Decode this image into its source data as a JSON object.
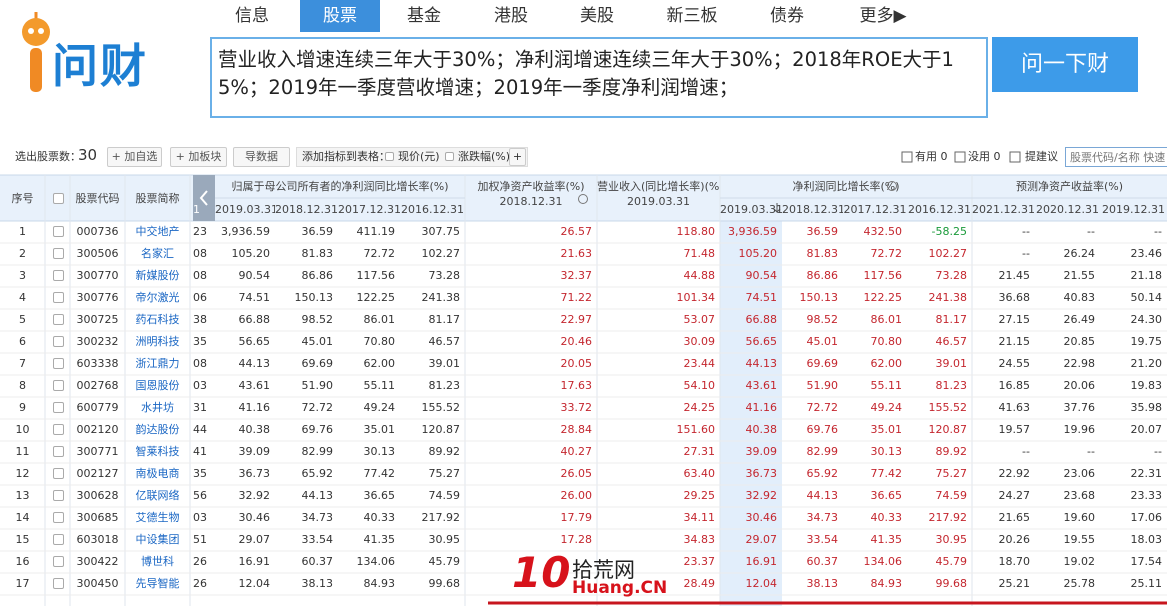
{
  "header": {
    "logo": "问财",
    "nav": [
      "信息",
      "股票",
      "基金",
      "港股",
      "美股",
      "新三板",
      "债券",
      "更多▶"
    ],
    "nav_active": 1
  },
  "search": {
    "query": "营业收入增速连续三年大于30%；净利润增速连续三年大于30%；2018年ROE大于15%；2019年一季度营收增速；2019年一季度净利润增速；",
    "button": "问一下财"
  },
  "toolbar": {
    "count_label": "选出股票数：",
    "count": "30",
    "buttons": [
      "+ 加自选",
      "+ 加板块",
      "导数据"
    ],
    "add_indicator_label": "添加指标到表格：",
    "indicators": [
      "现价(元)",
      "涨跌幅(%)"
    ],
    "add_more": "+",
    "useful": "有用 0",
    "useless": "没用 0",
    "suggest": "提建议",
    "search_placeholder": "股票代码/名称 快速"
  },
  "table": {
    "seq_header": "序号",
    "code_header": "股票代码",
    "name_header": "股票简称",
    "hidden_header": "1",
    "groups": [
      {
        "label": "归属于母公司所有者的净利润同比增长率(%)",
        "dates": [
          "2019.03.31",
          "2018.12.31",
          "2017.12.31",
          "2016.12.31"
        ]
      },
      {
        "label": "加权净资产收益率(%)",
        "dates": [
          "2018.12.31"
        ]
      },
      {
        "label": "营业收入(同比增长率)(%)",
        "dates": [
          "2019.03.31"
        ]
      },
      {
        "label": "净利润同比增长率(%)",
        "dates": [
          "2019.03.31",
          "2018.12.31",
          "2017.12.31",
          "2016.12.31"
        ]
      },
      {
        "label": "预测净资产收益率(%)",
        "dates": [
          "2021.12.31",
          "2020.12.31",
          "2019.12.31"
        ]
      }
    ],
    "rows": [
      [
        "1",
        "000736",
        "中交地产",
        "23",
        "3,936.59",
        "36.59",
        "411.19",
        "307.75",
        "26.57",
        "118.80",
        "3,936.59",
        "36.59",
        "432.50",
        "-58.25",
        "--",
        "--",
        "--"
      ],
      [
        "2",
        "300506",
        "名家汇",
        "08",
        "105.20",
        "81.83",
        "72.72",
        "102.27",
        "21.63",
        "71.48",
        "105.20",
        "81.83",
        "72.72",
        "102.27",
        "--",
        "26.24",
        "23.46"
      ],
      [
        "3",
        "300770",
        "新媒股份",
        "08",
        "90.54",
        "86.86",
        "117.56",
        "73.28",
        "32.37",
        "44.88",
        "90.54",
        "86.86",
        "117.56",
        "73.28",
        "21.45",
        "21.55",
        "21.18"
      ],
      [
        "4",
        "300776",
        "帝尔激光",
        "06",
        "74.51",
        "150.13",
        "122.25",
        "241.38",
        "71.22",
        "101.34",
        "74.51",
        "150.13",
        "122.25",
        "241.38",
        "36.68",
        "40.83",
        "50.14"
      ],
      [
        "5",
        "300725",
        "药石科技",
        "38",
        "66.88",
        "98.52",
        "86.01",
        "81.17",
        "22.97",
        "53.07",
        "66.88",
        "98.52",
        "86.01",
        "81.17",
        "27.15",
        "26.49",
        "24.30"
      ],
      [
        "6",
        "300232",
        "洲明科技",
        "35",
        "56.65",
        "45.01",
        "70.80",
        "46.57",
        "20.46",
        "30.09",
        "56.65",
        "45.01",
        "70.80",
        "46.57",
        "21.15",
        "20.85",
        "19.75"
      ],
      [
        "7",
        "603338",
        "浙江鼎力",
        "08",
        "44.13",
        "69.69",
        "62.00",
        "39.01",
        "20.05",
        "23.44",
        "44.13",
        "69.69",
        "62.00",
        "39.01",
        "24.55",
        "22.98",
        "21.20"
      ],
      [
        "8",
        "002768",
        "国恩股份",
        "03",
        "43.61",
        "51.90",
        "55.11",
        "81.23",
        "17.63",
        "54.10",
        "43.61",
        "51.90",
        "55.11",
        "81.23",
        "16.85",
        "20.06",
        "19.83"
      ],
      [
        "9",
        "600779",
        "水井坊",
        "31",
        "41.16",
        "72.72",
        "49.24",
        "155.52",
        "33.72",
        "24.25",
        "41.16",
        "72.72",
        "49.24",
        "155.52",
        "41.63",
        "37.76",
        "35.98"
      ],
      [
        "10",
        "002120",
        "韵达股份",
        "44",
        "40.38",
        "69.76",
        "35.01",
        "120.87",
        "28.84",
        "151.60",
        "40.38",
        "69.76",
        "35.01",
        "120.87",
        "19.57",
        "19.96",
        "20.07"
      ],
      [
        "11",
        "300771",
        "智莱科技",
        "41",
        "39.09",
        "82.99",
        "30.13",
        "89.92",
        "40.27",
        "27.31",
        "39.09",
        "82.99",
        "30.13",
        "89.92",
        "--",
        "--",
        "--"
      ],
      [
        "12",
        "002127",
        "南极电商",
        "35",
        "36.73",
        "65.92",
        "77.42",
        "75.27",
        "26.05",
        "63.40",
        "36.73",
        "65.92",
        "77.42",
        "75.27",
        "22.92",
        "23.06",
        "22.31"
      ],
      [
        "13",
        "300628",
        "亿联网络",
        "56",
        "32.92",
        "44.13",
        "36.65",
        "74.59",
        "26.00",
        "29.25",
        "32.92",
        "44.13",
        "36.65",
        "74.59",
        "24.27",
        "23.68",
        "23.33"
      ],
      [
        "14",
        "300685",
        "艾德生物",
        "03",
        "30.46",
        "34.73",
        "40.33",
        "217.92",
        "17.79",
        "34.11",
        "30.46",
        "34.73",
        "40.33",
        "217.92",
        "21.65",
        "19.60",
        "17.06"
      ],
      [
        "15",
        "603018",
        "中设集团",
        "51",
        "29.07",
        "33.54",
        "41.35",
        "30.95",
        "17.28",
        "34.83",
        "29.07",
        "33.54",
        "41.35",
        "30.95",
        "20.26",
        "19.55",
        "18.03"
      ],
      [
        "16",
        "300422",
        "博世科",
        "26",
        "16.91",
        "60.37",
        "134.06",
        "45.79",
        null,
        "23.37",
        "16.91",
        "60.37",
        "134.06",
        "45.79",
        "18.70",
        "19.02",
        "17.54"
      ],
      [
        "17",
        "300450",
        "先导智能",
        "26",
        "12.04",
        "38.13",
        "84.93",
        "99.68",
        null,
        "28.49",
        "12.04",
        "38.13",
        "84.93",
        "99.68",
        "25.21",
        "25.78",
        "25.11"
      ]
    ]
  },
  "watermark": {
    "number": "10",
    "site": "拾荒网",
    "domain": "Huang.CN"
  }
}
